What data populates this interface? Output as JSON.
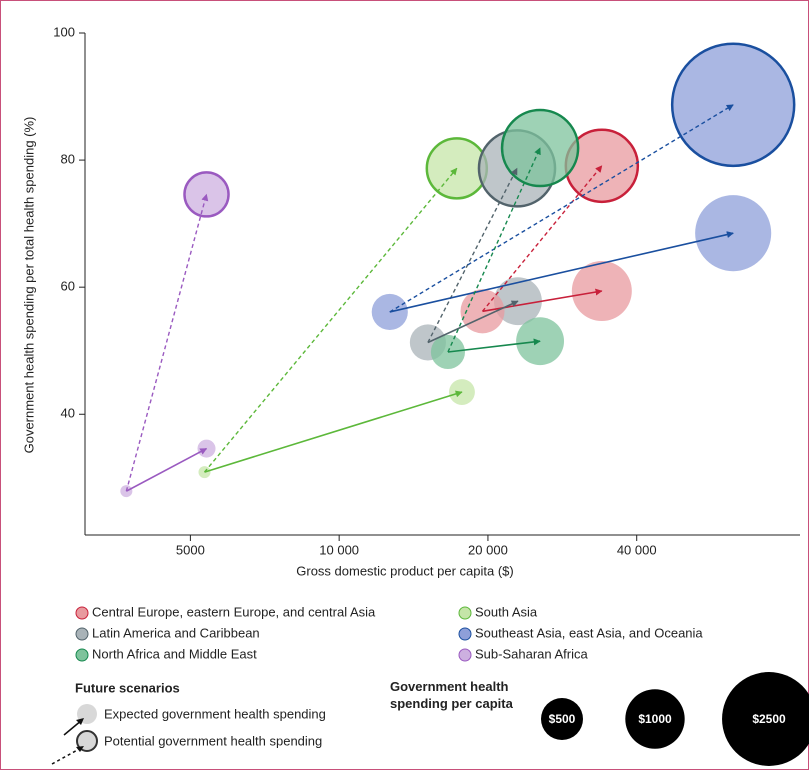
{
  "chart_data": {
    "type": "bubble",
    "x_label": "Gross domestic product per capita ($)",
    "y_label": "Government health spending per total health spending (%)",
    "x_log": true,
    "xlim": [
      3060,
      85600
    ],
    "ylim": [
      21,
      100
    ],
    "xticks": [
      5000,
      {
        "value": 10000,
        "label": "10 000"
      },
      {
        "value": 20000,
        "label": "20 000"
      },
      {
        "value": 40000,
        "label": "40 000"
      }
    ],
    "yticks": [
      40,
      60,
      80,
      100
    ],
    "series": [
      {
        "name": "Central Europe, eastern Europe, and central Asia",
        "color": "#c8203a",
        "fill": "#e89a9f",
        "x": [
          19500,
          34000,
          34000
        ],
        "values": [
          56.2,
          59.4,
          79.1
        ],
        "sizes": [
          550,
          1020,
          1470
        ]
      },
      {
        "name": "South Asia",
        "color": "#5cb83a",
        "fill": "#c5e5a8",
        "x": [
          5340,
          17720,
          17300
        ],
        "values": [
          30.9,
          43.5,
          78.7
        ],
        "sizes": [
          41,
          190,
          1020
        ]
      },
      {
        "name": "Latin America and Caribbean",
        "color": "#52636b",
        "fill": "#a9b3b8",
        "x": [
          15120,
          23000,
          22900
        ],
        "values": [
          51.3,
          57.8,
          78.7
        ],
        "sizes": [
          370,
          650,
          1640
        ]
      },
      {
        "name": "Southeast Asia, east Asia, and Oceania",
        "color": "#1a4f9f",
        "fill": "#8e9fd9",
        "x": [
          12660,
          62700,
          62700
        ],
        "values": [
          56.1,
          68.5,
          88.7
        ],
        "sizes": [
          370,
          1640,
          4220
        ]
      },
      {
        "name": "North Africa and Middle East",
        "color": "#16884e",
        "fill": "#7ec39c",
        "x": [
          16600,
          25500,
          25500
        ],
        "values": [
          49.8,
          51.5,
          81.9
        ],
        "sizes": [
          330,
          650,
          1640
        ]
      },
      {
        "name": "Sub-Saharan Africa",
        "color": "#9a5ac0",
        "fill": "#cdb0e0",
        "x": [
          3710,
          5390,
          5390
        ],
        "values": [
          27.9,
          34.6,
          74.6
        ],
        "sizes": [
          41,
          92,
          550
        ]
      }
    ],
    "scenario_title": "Future scenarios",
    "scenarios": [
      "Expected government health spending",
      "Potential government health spending"
    ],
    "size_legend_title": "Government health spending per capita",
    "size_legend": [
      {
        "value": 500,
        "label": "$500"
      },
      {
        "value": 1000,
        "label": "$1000"
      },
      {
        "value": 2500,
        "label": "$2500"
      }
    ]
  }
}
